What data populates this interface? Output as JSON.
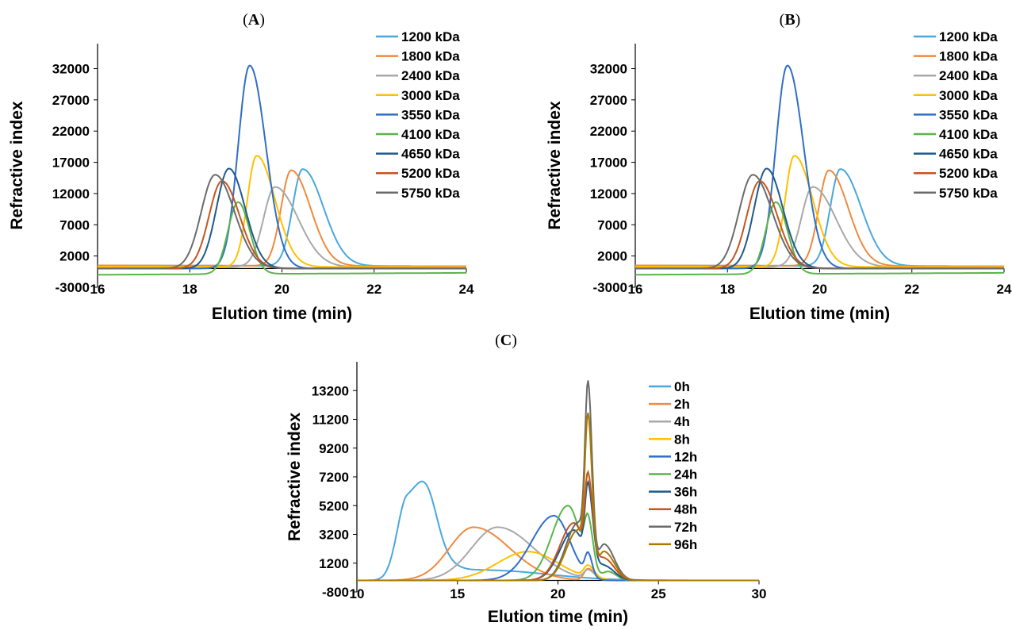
{
  "chart_data": [
    {
      "panel_label": "A",
      "type": "line",
      "xlabel": "Elution time (min)",
      "ylabel": "Refractive index",
      "xlim": [
        16,
        24
      ],
      "ylim": [
        -3000,
        36000
      ],
      "xticks": [
        16,
        18,
        20,
        22,
        24
      ],
      "yticks": [
        -3000,
        2000,
        7000,
        12000,
        17000,
        22000,
        27000,
        32000
      ],
      "legend_position": "right",
      "series": [
        {
          "name": "1200 kDa",
          "color": "#4aa7dd",
          "baseline": 500,
          "peaks": [
            {
              "x": 20.45,
              "h": 15500,
              "sl": 0.22,
              "sr": 0.45
            }
          ]
        },
        {
          "name": "1800 kDa",
          "color": "#f08a3e",
          "baseline": 500,
          "peaks": [
            {
              "x": 20.2,
              "h": 15300,
              "sl": 0.22,
              "sr": 0.42
            }
          ]
        },
        {
          "name": "2400 kDa",
          "color": "#a8a8a8",
          "baseline": 300,
          "peaks": [
            {
              "x": 19.85,
              "h": 12800,
              "sl": 0.25,
              "sr": 0.5
            }
          ]
        },
        {
          "name": "3000 kDa",
          "color": "#ffc000",
          "baseline": 300,
          "peaks": [
            {
              "x": 19.45,
              "h": 17800,
              "sl": 0.2,
              "sr": 0.4
            }
          ]
        },
        {
          "name": "3550 kDa",
          "color": "#2f6fc7",
          "baseline": 0,
          "peaks": [
            {
              "x": 19.3,
              "h": 32500,
              "sl": 0.25,
              "sr": 0.35
            }
          ]
        },
        {
          "name": "4100 kDa",
          "color": "#5bb44a",
          "baseline": -1000,
          "peaks": [
            {
              "x": 19.05,
              "h": 11500,
              "sl": 0.22,
              "sr": 0.25
            }
          ]
        },
        {
          "name": "4650 kDa",
          "color": "#1f5a8c",
          "baseline": 0,
          "peaks": [
            {
              "x": 18.85,
              "h": 16000,
              "sl": 0.27,
              "sr": 0.35
            }
          ]
        },
        {
          "name": "5200 kDa",
          "color": "#c4561f",
          "baseline": 0,
          "peaks": [
            {
              "x": 18.7,
              "h": 14000,
              "sl": 0.28,
              "sr": 0.38
            }
          ]
        },
        {
          "name": "5750 kDa",
          "color": "#6b6b6b",
          "baseline": 0,
          "peaks": [
            {
              "x": 18.55,
              "h": 15000,
              "sl": 0.3,
              "sr": 0.42
            }
          ]
        }
      ]
    },
    {
      "panel_label": "B",
      "type": "line",
      "xlabel": "Elution time (min)",
      "ylabel": "Refractive index",
      "xlim": [
        16,
        24
      ],
      "ylim": [
        -3000,
        36000
      ],
      "xticks": [
        16,
        18,
        20,
        22,
        24
      ],
      "yticks": [
        -3000,
        2000,
        7000,
        12000,
        17000,
        22000,
        27000,
        32000
      ],
      "legend_position": "right",
      "series": [
        {
          "name": "1200 kDa",
          "color": "#4aa7dd",
          "baseline": 500,
          "peaks": [
            {
              "x": 20.45,
              "h": 15500,
              "sl": 0.22,
              "sr": 0.45
            }
          ]
        },
        {
          "name": "1800 kDa",
          "color": "#f08a3e",
          "baseline": 500,
          "peaks": [
            {
              "x": 20.2,
              "h": 15300,
              "sl": 0.22,
              "sr": 0.42
            }
          ]
        },
        {
          "name": "2400 kDa",
          "color": "#a8a8a8",
          "baseline": 300,
          "peaks": [
            {
              "x": 19.85,
              "h": 12800,
              "sl": 0.25,
              "sr": 0.5
            }
          ]
        },
        {
          "name": "3000 kDa",
          "color": "#ffc000",
          "baseline": 300,
          "peaks": [
            {
              "x": 19.45,
              "h": 17800,
              "sl": 0.2,
              "sr": 0.4
            }
          ]
        },
        {
          "name": "3550 kDa",
          "color": "#2f6fc7",
          "baseline": 0,
          "peaks": [
            {
              "x": 19.3,
              "h": 32500,
              "sl": 0.25,
              "sr": 0.35
            }
          ]
        },
        {
          "name": "4100 kDa",
          "color": "#5bb44a",
          "baseline": -1000,
          "peaks": [
            {
              "x": 19.05,
              "h": 11500,
              "sl": 0.22,
              "sr": 0.25
            }
          ]
        },
        {
          "name": "4650 kDa",
          "color": "#1f5a8c",
          "baseline": 0,
          "peaks": [
            {
              "x": 18.85,
              "h": 16000,
              "sl": 0.27,
              "sr": 0.35
            }
          ]
        },
        {
          "name": "5200 kDa",
          "color": "#c4561f",
          "baseline": 0,
          "peaks": [
            {
              "x": 18.7,
              "h": 14000,
              "sl": 0.28,
              "sr": 0.38
            }
          ]
        },
        {
          "name": "5750 kDa",
          "color": "#6b6b6b",
          "baseline": 0,
          "peaks": [
            {
              "x": 18.55,
              "h": 15000,
              "sl": 0.3,
              "sr": 0.42
            }
          ]
        }
      ]
    },
    {
      "panel_label": "C",
      "type": "line",
      "xlabel": "Elution time (min)",
      "ylabel": "Refractive index",
      "xlim": [
        10,
        30
      ],
      "ylim": [
        -800,
        15200
      ],
      "xticks": [
        10,
        15,
        20,
        25,
        30
      ],
      "yticks": [
        -800,
        1200,
        3200,
        5200,
        7200,
        9200,
        11200,
        13200
      ],
      "legend_position": "right",
      "series": [
        {
          "name": "0h",
          "color": "#4aa7dd",
          "baseline": 0,
          "peaks": [
            {
              "x": 12.5,
              "h": 5600,
              "sl": 0.5,
              "sr": 1.2
            },
            {
              "x": 13.5,
              "h": 2500,
              "sl": 0.5,
              "sr": 0.5
            },
            {
              "x": 16.5,
              "h": 700,
              "sl": 1.5,
              "sr": 3.0
            }
          ]
        },
        {
          "name": "2h",
          "color": "#f08a3e",
          "baseline": 0,
          "peaks": [
            {
              "x": 15.8,
              "h": 3700,
              "sl": 1.2,
              "sr": 1.8
            },
            {
              "x": 21.5,
              "h": 800,
              "sl": 0.2,
              "sr": 0.3
            }
          ]
        },
        {
          "name": "4h",
          "color": "#a8a8a8",
          "baseline": 0,
          "peaks": [
            {
              "x": 17.0,
              "h": 3700,
              "sl": 1.3,
              "sr": 1.8
            },
            {
              "x": 21.5,
              "h": 600,
              "sl": 0.2,
              "sr": 0.3
            }
          ]
        },
        {
          "name": "8h",
          "color": "#ffc000",
          "baseline": 0,
          "peaks": [
            {
              "x": 18.5,
              "h": 2000,
              "sl": 1.5,
              "sr": 1.5
            },
            {
              "x": 21.5,
              "h": 800,
              "sl": 0.2,
              "sr": 0.3
            }
          ]
        },
        {
          "name": "12h",
          "color": "#2f6fc7",
          "baseline": 0,
          "peaks": [
            {
              "x": 19.8,
              "h": 4500,
              "sl": 1.1,
              "sr": 0.8
            },
            {
              "x": 21.5,
              "h": 1500,
              "sl": 0.15,
              "sr": 0.2
            }
          ]
        },
        {
          "name": "24h",
          "color": "#5bb44a",
          "baseline": 0,
          "peaks": [
            {
              "x": 20.5,
              "h": 5200,
              "sl": 0.8,
              "sr": 0.6
            },
            {
              "x": 21.5,
              "h": 3300,
              "sl": 0.18,
              "sr": 0.25
            },
            {
              "x": 22.5,
              "h": 600,
              "sl": 0.3,
              "sr": 0.4
            }
          ]
        },
        {
          "name": "36h",
          "color": "#1f5a8c",
          "baseline": 0,
          "peaks": [
            {
              "x": 20.8,
              "h": 3500,
              "sl": 0.7,
              "sr": 0.5
            },
            {
              "x": 21.5,
              "h": 5500,
              "sl": 0.15,
              "sr": 0.25
            },
            {
              "x": 22.3,
              "h": 1000,
              "sl": 0.3,
              "sr": 0.5
            }
          ]
        },
        {
          "name": "48h",
          "color": "#c4561f",
          "baseline": 0,
          "peaks": [
            {
              "x": 20.8,
              "h": 4000,
              "sl": 0.7,
              "sr": 0.5
            },
            {
              "x": 21.5,
              "h": 6000,
              "sl": 0.15,
              "sr": 0.25
            },
            {
              "x": 22.3,
              "h": 1500,
              "sl": 0.3,
              "sr": 0.5
            }
          ]
        },
        {
          "name": "72h",
          "color": "#6b6b6b",
          "baseline": 0,
          "peaks": [
            {
              "x": 21.0,
              "h": 4000,
              "sl": 0.6,
              "sr": 0.4
            },
            {
              "x": 21.5,
              "h": 12000,
              "sl": 0.15,
              "sr": 0.2
            },
            {
              "x": 22.3,
              "h": 2500,
              "sl": 0.3,
              "sr": 0.5
            }
          ]
        },
        {
          "name": "96h",
          "color": "#a87a00",
          "baseline": 0,
          "peaks": [
            {
              "x": 21.0,
              "h": 3500,
              "sl": 0.6,
              "sr": 0.4
            },
            {
              "x": 21.5,
              "h": 10000,
              "sl": 0.15,
              "sr": 0.2
            },
            {
              "x": 22.3,
              "h": 2000,
              "sl": 0.3,
              "sr": 0.5
            }
          ]
        }
      ]
    }
  ]
}
